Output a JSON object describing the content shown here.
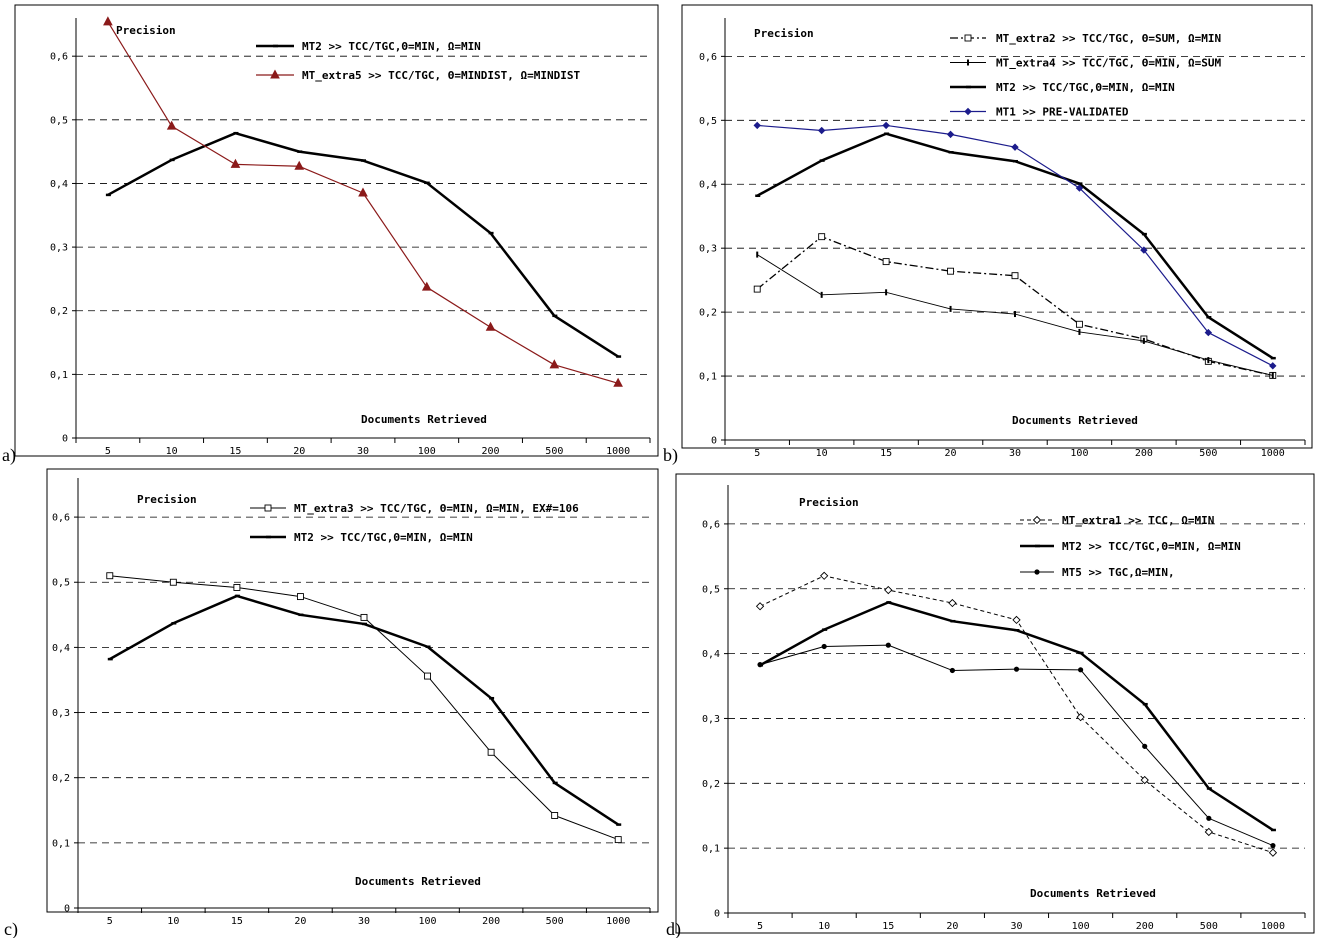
{
  "chart_data": [
    {
      "panel": "a)",
      "type": "line",
      "categories": [
        "5",
        "10",
        "15",
        "20",
        "30",
        "100",
        "200",
        "500",
        "1000"
      ],
      "ylabel": "Precision",
      "xlabel": "Documents Retrieved",
      "yticks": [
        "0",
        "0,1",
        "0,2",
        "0,3",
        "0,4",
        "0,5",
        "0,6"
      ],
      "ylim": [
        0,
        0.66
      ],
      "grid": "horizontal dashed",
      "legend_position": "top-right",
      "series": [
        {
          "name": "MT2 >> TCC/TGC,Θ=MIN, Ω=MIN",
          "values": [
            0.382,
            0.437,
            0.479,
            0.45,
            0.436,
            0.401,
            0.322,
            0.192,
            0.128
          ],
          "color": "#000000",
          "width": 2.5,
          "marker": "none",
          "dash": ""
        },
        {
          "name": "MT_extra5 >> TCC/TGC, Θ=MINDIST, Ω=MINDIST",
          "values": [
            0.654,
            0.49,
            0.43,
            0.427,
            0.385,
            0.237,
            0.174,
            0.115,
            0.086
          ],
          "color": "#8b1a1a",
          "width": 1.2,
          "marker": "triangle",
          "dash": ""
        }
      ]
    },
    {
      "panel": "b)",
      "type": "line",
      "categories": [
        "5",
        "10",
        "15",
        "20",
        "30",
        "100",
        "200",
        "500",
        "1000"
      ],
      "ylabel": "Precision",
      "xlabel": "Documents Retrieved",
      "yticks": [
        "0",
        "0,1",
        "0,2",
        "0,3",
        "0,4",
        "0,5",
        "0,6"
      ],
      "ylim": [
        0,
        0.66
      ],
      "grid": "horizontal dashed",
      "legend_position": "top-right",
      "series": [
        {
          "name": "MT_extra2 >> TCC/TGC, Θ=SUM, Ω=MIN",
          "values": [
            0.236,
            0.318,
            0.279,
            0.264,
            0.257,
            0.181,
            0.158,
            0.123,
            0.101
          ],
          "color": "#000000",
          "width": 1.3,
          "marker": "square",
          "dash": "8 3 2 3"
        },
        {
          "name": "MT_extra4 >> TCC/TGC, Θ=MIN, Ω=SUM",
          "values": [
            0.29,
            0.227,
            0.231,
            0.205,
            0.197,
            0.169,
            0.155,
            0.125,
            0.101
          ],
          "color": "#000000",
          "width": 0.9,
          "marker": "bar",
          "dash": ""
        },
        {
          "name": "MT2 >> TCC/TGC,Θ=MIN, Ω=MIN",
          "values": [
            0.382,
            0.437,
            0.479,
            0.45,
            0.436,
            0.401,
            0.322,
            0.192,
            0.128
          ],
          "color": "#000000",
          "width": 2.5,
          "marker": "none",
          "dash": ""
        },
        {
          "name": "MT1 >> PRE-VALIDATED",
          "values": [
            0.492,
            0.484,
            0.492,
            0.478,
            0.458,
            0.394,
            0.297,
            0.168,
            0.116
          ],
          "color": "#1c1c8c",
          "width": 1.2,
          "marker": "diamond",
          "dash": ""
        }
      ]
    },
    {
      "panel": "c)",
      "type": "line",
      "categories": [
        "5",
        "10",
        "15",
        "20",
        "30",
        "100",
        "200",
        "500",
        "1000"
      ],
      "ylabel": "Precision",
      "xlabel": "Documents Retrieved",
      "yticks": [
        "0",
        "0,1",
        "0,2",
        "0,3",
        "0,4",
        "0,5",
        "0,6"
      ],
      "ylim": [
        0,
        0.66
      ],
      "grid": "horizontal dashed",
      "legend_position": "top-right",
      "series": [
        {
          "name": "MT_extra3 >> TCC/TGC, Θ=MIN, Ω=MIN, EX#=106",
          "values": [
            0.51,
            0.5,
            0.492,
            0.478,
            0.446,
            0.356,
            0.239,
            0.142,
            0.105
          ],
          "color": "#000000",
          "width": 1.0,
          "marker": "square",
          "dash": ""
        },
        {
          "name": "MT2 >> TCC/TGC,Θ=MIN, Ω=MIN",
          "values": [
            0.382,
            0.437,
            0.479,
            0.45,
            0.436,
            0.401,
            0.322,
            0.192,
            0.128
          ],
          "color": "#000000",
          "width": 2.5,
          "marker": "none",
          "dash": ""
        }
      ]
    },
    {
      "panel": "d)",
      "type": "line",
      "categories": [
        "5",
        "10",
        "15",
        "20",
        "30",
        "100",
        "200",
        "500",
        "1000"
      ],
      "ylabel": "Precision",
      "xlabel": "Documents Retrieved",
      "yticks": [
        "0",
        "0,1",
        "0,2",
        "0,3",
        "0,4",
        "0,5",
        "0,6"
      ],
      "ylim": [
        0,
        0.66
      ],
      "grid": "horizontal dashed",
      "legend_position": "top-right",
      "series": [
        {
          "name": "MT_extra1 >> TCC, Ω=MIN",
          "values": [
            0.473,
            0.52,
            0.498,
            0.478,
            0.452,
            0.302,
            0.205,
            0.125,
            0.093
          ],
          "color": "#000000",
          "width": 1.0,
          "marker": "diamond-open",
          "dash": "4 3"
        },
        {
          "name": "MT2 >> TCC/TGC,Θ=MIN, Ω=MIN",
          "values": [
            0.382,
            0.437,
            0.479,
            0.45,
            0.436,
            0.401,
            0.322,
            0.192,
            0.128
          ],
          "color": "#000000",
          "width": 2.5,
          "marker": "none",
          "dash": ""
        },
        {
          "name": "MT5 >> TGC,Ω=MIN,",
          "values": [
            0.383,
            0.411,
            0.413,
            0.374,
            0.376,
            0.375,
            0.257,
            0.146,
            0.104
          ],
          "color": "#000000",
          "width": 1.0,
          "marker": "dot",
          "dash": ""
        }
      ]
    }
  ]
}
